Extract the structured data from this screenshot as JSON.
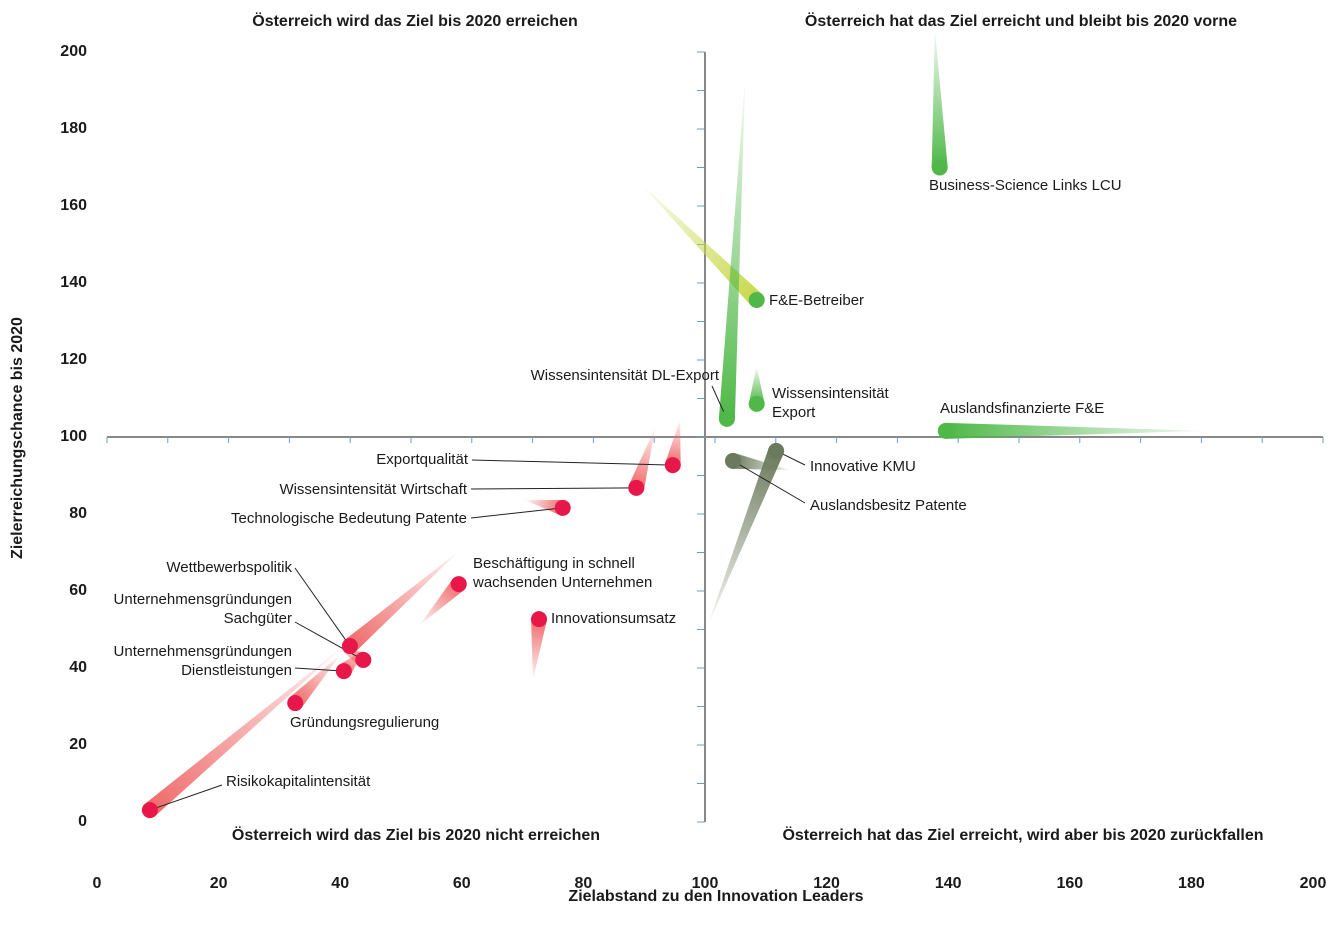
{
  "chart_data": {
    "type": "scatter",
    "quadrant_labels": [
      "Österreich wird das Ziel bis 2020 erreichen",
      "Österreich hat das Ziel erreicht und bleibt bis 2020 vorne",
      "Österreich wird das Ziel bis 2020 nicht erreichen",
      "Österreich hat das Ziel erreicht, wird aber bis 2020 zurückfallen"
    ],
    "x_label": "Zielabstand zu den Innovation Leaders",
    "y_label": "Zielerreichungschance bis 2020",
    "xlim": [
      0,
      200
    ],
    "ylim": [
      0,
      200
    ],
    "xticks": [
      0,
      20,
      40,
      60,
      80,
      100,
      120,
      140,
      160,
      180,
      200
    ],
    "yticks": [
      0,
      20,
      40,
      60,
      80,
      100,
      120,
      140,
      160,
      180,
      200
    ],
    "cross": [
      100,
      100
    ],
    "points": [
      {
        "label": [
          "Business-Science Links LCU"
        ],
        "x": 138.6,
        "y": 170,
        "from_x": 137.8,
        "from_y": 206,
        "color": "#4fb848",
        "tail_color": "#4fb848"
      },
      {
        "label": [
          "F&E-Betreiber"
        ],
        "x": 108.5,
        "y": 135.6,
        "from_x": 89.3,
        "from_y": 166,
        "color": "#4fb848",
        "tail_color": "#c8d84a"
      },
      {
        "label": [
          "Wissensintensität DL-Export"
        ],
        "x": 103.6,
        "y": 104.7,
        "from_x": 106.6,
        "from_y": 193,
        "color": "#4fb848",
        "tail_color": "#4fb848"
      },
      {
        "label": [
          "Wissensintensität",
          "Export"
        ],
        "x": 108.5,
        "y": 108.6,
        "from_x": 108.5,
        "from_y": 118.4,
        "color": "#4fb848",
        "tail_color": "#4fb848"
      },
      {
        "label": [
          "Auslandsfinanzierte F&E"
        ],
        "x": 139.6,
        "y": 101.6,
        "from_x": 182.2,
        "from_y": 101.6,
        "color": "#4fb848",
        "tail_color": "#4fb848"
      },
      {
        "label": [
          "Innovative KMU"
        ],
        "x": 111.7,
        "y": 96.4,
        "from_x": 100.5,
        "from_y": 51.2,
        "color": "#6b7a5c",
        "tail_color": "#6b7a5c"
      },
      {
        "label": [
          "Auslandsbesitz Patente"
        ],
        "x": 104.6,
        "y": 93.8,
        "from_x": 114,
        "from_y": 91.4,
        "color": "#6b7a5c",
        "tail_color": "#6b7a5c"
      },
      {
        "label": [
          "Exportqualität"
        ],
        "x": 94.7,
        "y": 92.7,
        "from_x": 95.9,
        "from_y": 104.4,
        "color": "#e8174a",
        "tail_color": "#ef6a6a"
      },
      {
        "label": [
          "Wissensintensität Wirtschaft"
        ],
        "x": 88.7,
        "y": 86.8,
        "from_x": 91.8,
        "from_y": 102.3,
        "color": "#e8174a",
        "tail_color": "#ef6a6a"
      },
      {
        "label": [
          "Technologische Bedeutung Patente"
        ],
        "x": 76.6,
        "y": 81.6,
        "from_x": 70.4,
        "from_y": 83.6,
        "color": "#e8174a",
        "tail_color": "#ef6a6a"
      },
      {
        "label": [
          "Beschäftigung in schnell",
          "wachsenden Unternehmen"
        ],
        "x": 59.5,
        "y": 61.8,
        "from_x": 53.1,
        "from_y": 51.2,
        "color": "#e8174a",
        "tail_color": "#ef6a6a"
      },
      {
        "label": [
          "Innovationsumsatz"
        ],
        "x": 72.7,
        "y": 52.7,
        "from_x": 71.7,
        "from_y": 36.9,
        "color": "#e8174a",
        "tail_color": "#ef6a6a"
      },
      {
        "label": [
          "Wettbewerbspolitik"
        ],
        "x": 41.6,
        "y": 45.7,
        "from_x": 59.7,
        "from_y": 70.6,
        "color": "#e8174a",
        "tail_color": "#ef6a6a"
      },
      {
        "label": [
          "Unternehmensgründungen",
          "Sachgüter"
        ],
        "x": 43.8,
        "y": 42.1,
        "from_x": 40,
        "from_y": 45,
        "color": "#e8174a",
        "tail_color": "#ef6a6a"
      },
      {
        "label": [
          "Unternehmensgründungen",
          "Dienstleistungen"
        ],
        "x": 40.6,
        "y": 39.2,
        "from_x": 44,
        "from_y": 44.7,
        "color": "#e8174a",
        "tail_color": "#ef6a6a"
      },
      {
        "label": [
          "Gründungsregulierung"
        ],
        "x": 32.6,
        "y": 30.9,
        "from_x": 40,
        "from_y": 43.4,
        "color": "#e8174a",
        "tail_color": "#ef6a6a"
      },
      {
        "label": [
          "Risikokapitalintensität"
        ],
        "x": 8.7,
        "y": 3.1,
        "from_x": 40.8,
        "from_y": 46,
        "color": "#e8174a",
        "tail_color": "#ef6a6a"
      }
    ]
  }
}
